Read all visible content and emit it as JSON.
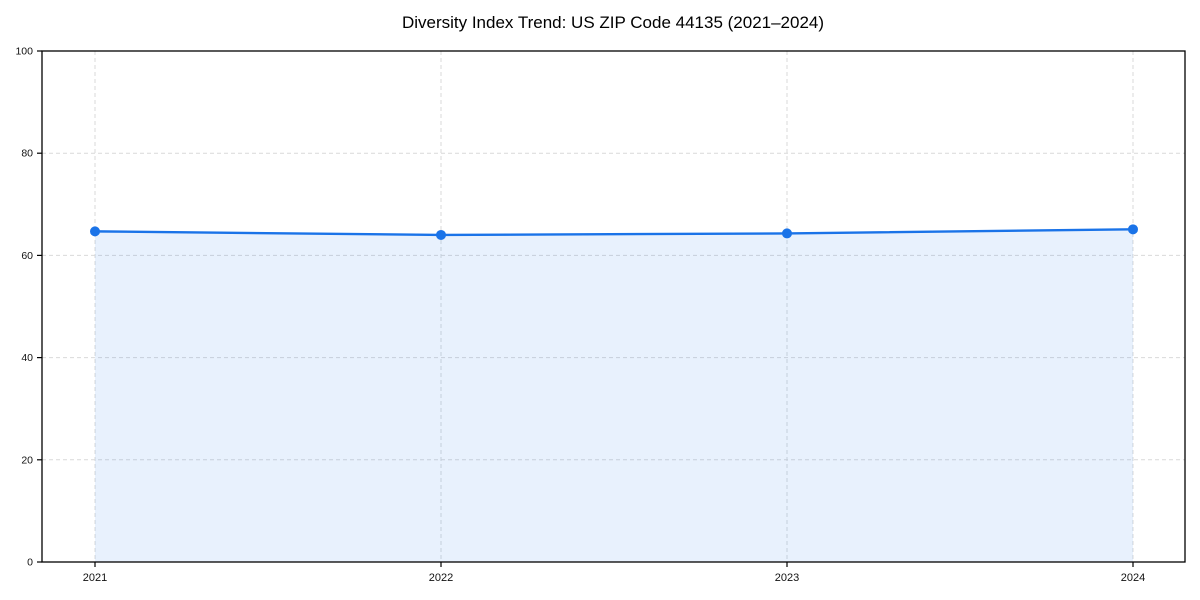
{
  "chart_data": {
    "type": "area",
    "title": "Diversity Index Trend: US ZIP Code 44135 (2021–2024)",
    "categories": [
      "2021",
      "2022",
      "2023",
      "2024"
    ],
    "series": [
      {
        "name": "Diversity Index",
        "values": [
          64.7,
          64.0,
          64.3,
          65.1
        ]
      }
    ],
    "xlabel": "",
    "ylabel": "",
    "ylim": [
      0,
      100
    ],
    "yticks": [
      0,
      20,
      40,
      60,
      80,
      100
    ],
    "grid": true,
    "grid_style": "dashed",
    "legend": false,
    "marker": "circle",
    "colors": {
      "line": "#1a73e8",
      "fill": "#1a73e8",
      "fill_opacity": "0.10",
      "grid": "#d9d9d9",
      "axis": "#000000",
      "text": "#111111",
      "background": "#ffffff"
    }
  }
}
